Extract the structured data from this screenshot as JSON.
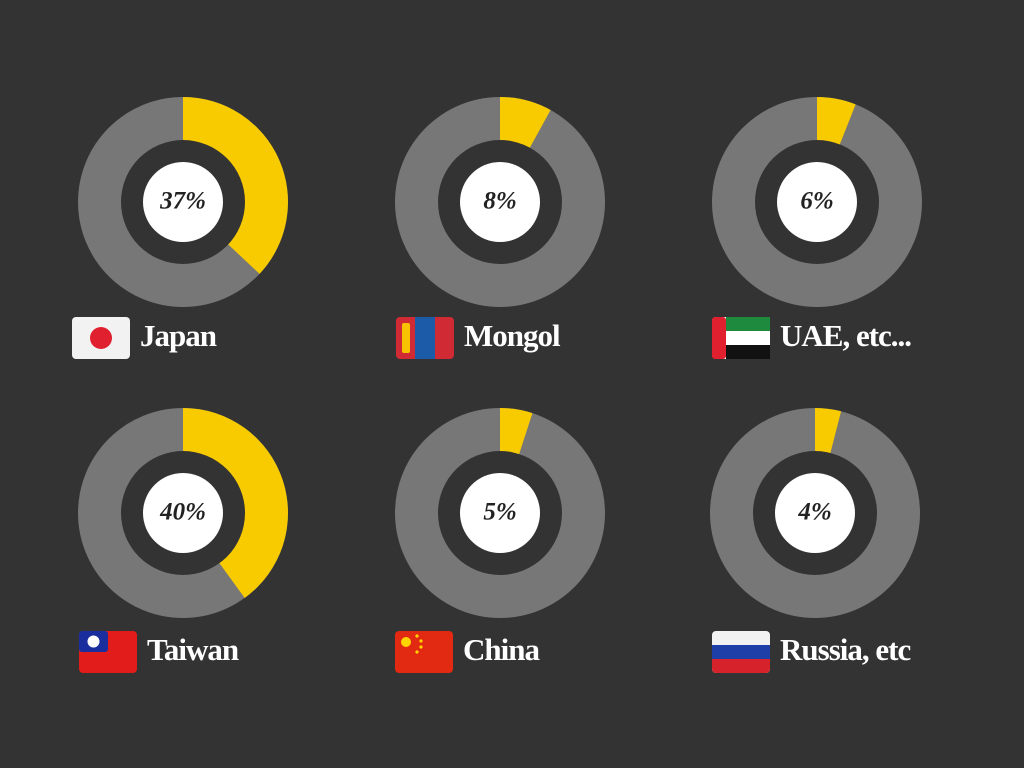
{
  "chart_data": [
    {
      "type": "donut",
      "categories": [
        "Japan"
      ],
      "values": [
        37
      ],
      "value_labels": [
        "37%"
      ],
      "color": "#f8cb00",
      "track_color": "#777777"
    },
    {
      "type": "donut",
      "categories": [
        "Mongol"
      ],
      "values": [
        8
      ],
      "value_labels": [
        "8%"
      ],
      "color": "#f8cb00",
      "track_color": "#777777"
    },
    {
      "type": "donut",
      "categories": [
        "UAE, etc..."
      ],
      "values": [
        6
      ],
      "value_labels": [
        "6%"
      ],
      "color": "#f8cb00",
      "track_color": "#777777"
    },
    {
      "type": "donut",
      "categories": [
        "Taiwan"
      ],
      "values": [
        40
      ],
      "value_labels": [
        "40%"
      ],
      "color": "#f8cb00",
      "track_color": "#777777"
    },
    {
      "type": "donut",
      "categories": [
        "China"
      ],
      "values": [
        5
      ],
      "value_labels": [
        "5%"
      ],
      "color": "#f8cb00",
      "track_color": "#777777"
    },
    {
      "type": "donut",
      "categories": [
        "Russia, etc"
      ],
      "values": [
        4
      ],
      "value_labels": [
        "4%"
      ],
      "color": "#f8cb00",
      "track_color": "#777777"
    }
  ]
}
